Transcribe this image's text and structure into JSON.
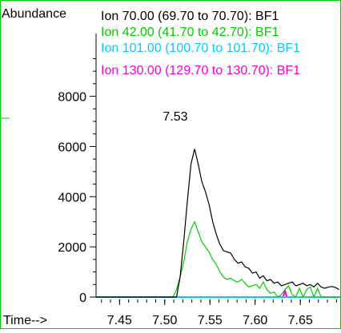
{
  "chart_data": {
    "type": "line",
    "ylabel": "Abundance",
    "xlabel": "Time-->",
    "xlim": [
      7.424,
      7.695
    ],
    "ylim": [
      0,
      10500
    ],
    "x_ticks": [
      "7.45",
      "7.50",
      "7.55",
      "7.60",
      "7.65"
    ],
    "y_ticks": [
      "0",
      "2000",
      "4000",
      "6000",
      "8000"
    ],
    "peak_label": "7.53",
    "series": [
      {
        "name": "Ion  70.00 (69.70 to 70.70): BF1",
        "color": "#000000",
        "points": [
          [
            7.424,
            0
          ],
          [
            7.513,
            0
          ],
          [
            7.517,
            800
          ],
          [
            7.521,
            2200
          ],
          [
            7.525,
            3800
          ],
          [
            7.529,
            5300
          ],
          [
            7.533,
            5900
          ],
          [
            7.537,
            5300
          ],
          [
            7.541,
            4600
          ],
          [
            7.545,
            4200
          ],
          [
            7.549,
            3700
          ],
          [
            7.553,
            3000
          ],
          [
            7.557,
            2500
          ],
          [
            7.561,
            2100
          ],
          [
            7.565,
            1850
          ],
          [
            7.569,
            1800
          ],
          [
            7.573,
            1750
          ],
          [
            7.577,
            1500
          ],
          [
            7.581,
            1350
          ],
          [
            7.585,
            1400
          ],
          [
            7.589,
            1200
          ],
          [
            7.593,
            1150
          ],
          [
            7.597,
            950
          ],
          [
            7.601,
            1000
          ],
          [
            7.605,
            750
          ],
          [
            7.609,
            850
          ],
          [
            7.613,
            650
          ],
          [
            7.617,
            700
          ],
          [
            7.621,
            550
          ],
          [
            7.625,
            600
          ],
          [
            7.629,
            450
          ],
          [
            7.633,
            500
          ],
          [
            7.637,
            550
          ],
          [
            7.641,
            600
          ],
          [
            7.645,
            450
          ],
          [
            7.649,
            500
          ],
          [
            7.653,
            550
          ],
          [
            7.657,
            450
          ],
          [
            7.661,
            500
          ],
          [
            7.665,
            400
          ],
          [
            7.669,
            550
          ],
          [
            7.673,
            400
          ],
          [
            7.677,
            350
          ],
          [
            7.681,
            400
          ],
          [
            7.685,
            420
          ],
          [
            7.689,
            380
          ],
          [
            7.693,
            300
          ]
        ]
      },
      {
        "name": "Ion  42.00 (41.70 to 42.70): BF1",
        "color": "#00cc00",
        "points": [
          [
            7.424,
            0
          ],
          [
            7.509,
            0
          ],
          [
            7.513,
            300
          ],
          [
            7.517,
            800
          ],
          [
            7.521,
            1400
          ],
          [
            7.525,
            2200
          ],
          [
            7.529,
            2700
          ],
          [
            7.533,
            3000
          ],
          [
            7.537,
            2600
          ],
          [
            7.541,
            2200
          ],
          [
            7.545,
            2000
          ],
          [
            7.549,
            1800
          ],
          [
            7.553,
            1500
          ],
          [
            7.557,
            1300
          ],
          [
            7.561,
            1000
          ],
          [
            7.565,
            800
          ],
          [
            7.569,
            700
          ],
          [
            7.573,
            750
          ],
          [
            7.577,
            650
          ],
          [
            7.581,
            600
          ],
          [
            7.585,
            700
          ],
          [
            7.589,
            550
          ],
          [
            7.593,
            400
          ],
          [
            7.597,
            450
          ],
          [
            7.601,
            500
          ],
          [
            7.605,
            350
          ],
          [
            7.609,
            600
          ],
          [
            7.613,
            300
          ],
          [
            7.617,
            150
          ],
          [
            7.621,
            200
          ],
          [
            7.625,
            0
          ],
          [
            7.629,
            100
          ],
          [
            7.633,
            300
          ],
          [
            7.637,
            450
          ],
          [
            7.641,
            100
          ],
          [
            7.645,
            0
          ],
          [
            7.649,
            350
          ],
          [
            7.653,
            0
          ],
          [
            7.657,
            300
          ],
          [
            7.661,
            400
          ],
          [
            7.665,
            0
          ],
          [
            7.669,
            350
          ],
          [
            7.673,
            0
          ],
          [
            7.677,
            0
          ],
          [
            7.695,
            0
          ]
        ]
      },
      {
        "name": "Ion 101.00 (100.70 to 101.70): BF1",
        "color": "#00ccff",
        "points": [
          [
            7.424,
            0
          ],
          [
            7.695,
            0
          ]
        ]
      },
      {
        "name": "Ion 130.00 (129.70 to 130.70): BF1",
        "color": "#ff00cc",
        "points": [
          [
            7.424,
            0
          ],
          [
            7.631,
            0
          ],
          [
            7.633,
            250
          ],
          [
            7.635,
            0
          ],
          [
            7.695,
            0
          ]
        ]
      }
    ]
  }
}
